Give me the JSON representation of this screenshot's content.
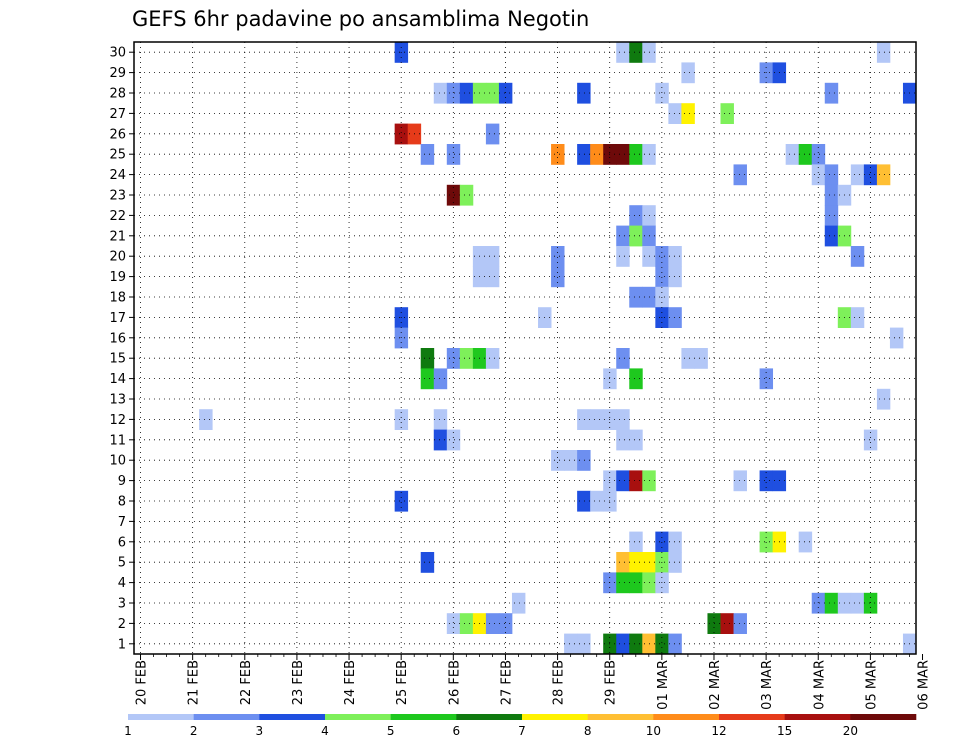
{
  "chart_data": {
    "type": "heatmap",
    "title": "GEFS 6hr padavine po ansamblima Negotin",
    "xlabel": "",
    "ylabel": "",
    "x_tick_labels": [
      "20 FEB",
      "21 FEB",
      "22 FEB",
      "23 FEB",
      "24 FEB",
      "25 FEB",
      "26 FEB",
      "27 FEB",
      "28 FEB",
      "29 FEB",
      "01 MAR",
      "02 MAR",
      "03 MAR",
      "04 MAR",
      "05 MAR",
      "06 MAR"
    ],
    "y_tick_labels": [
      "1",
      "2",
      "3",
      "4",
      "5",
      "6",
      "7",
      "8",
      "9",
      "10",
      "11",
      "12",
      "13",
      "14",
      "15",
      "16",
      "17",
      "18",
      "19",
      "20",
      "21",
      "22",
      "23",
      "24",
      "25",
      "26",
      "27",
      "28",
      "29",
      "30"
    ],
    "x_range_steps": [
      0,
      60
    ],
    "y_range_members": [
      0,
      30
    ],
    "x_step_hours": 6,
    "colorbar": {
      "ticks": [
        "1",
        "2",
        "3",
        "4",
        "5",
        "6",
        "7",
        "8",
        "10",
        "12",
        "15",
        "20"
      ],
      "colors": [
        "#b3c7f7",
        "#6d8ff0",
        "#1f4fe0",
        "#7ef05a",
        "#1ec81e",
        "#0f7a0f",
        "#fff200",
        "#ffbf33",
        "#ff8c1a",
        "#e63b1a",
        "#a8100f",
        "#6e0a0a"
      ]
    },
    "cells": [
      {
        "step": 20,
        "member": 30,
        "class": 3
      },
      {
        "step": 37,
        "member": 30,
        "class": 1
      },
      {
        "step": 38,
        "member": 30,
        "class": 6
      },
      {
        "step": 39,
        "member": 30,
        "class": 1
      },
      {
        "step": 57,
        "member": 30,
        "class": 1
      },
      {
        "step": 42,
        "member": 29,
        "class": 1
      },
      {
        "step": 48,
        "member": 29,
        "class": 2
      },
      {
        "step": 49,
        "member": 29,
        "class": 3
      },
      {
        "step": 23,
        "member": 28,
        "class": 1
      },
      {
        "step": 24,
        "member": 28,
        "class": 2
      },
      {
        "step": 25,
        "member": 28,
        "class": 3
      },
      {
        "step": 26,
        "member": 28,
        "class": 4
      },
      {
        "step": 27,
        "member": 28,
        "class": 4
      },
      {
        "step": 28,
        "member": 28,
        "class": 3
      },
      {
        "step": 34,
        "member": 28,
        "class": 3
      },
      {
        "step": 40,
        "member": 28,
        "class": 1
      },
      {
        "step": 53,
        "member": 28,
        "class": 2
      },
      {
        "step": 59,
        "member": 28,
        "class": 3
      },
      {
        "step": 60,
        "member": 28,
        "class": 1
      },
      {
        "step": 41,
        "member": 27,
        "class": 1
      },
      {
        "step": 42,
        "member": 27,
        "class": 7
      },
      {
        "step": 45,
        "member": 27,
        "class": 4
      },
      {
        "step": 20,
        "member": 26,
        "class": 11
      },
      {
        "step": 21,
        "member": 26,
        "class": 10
      },
      {
        "step": 27,
        "member": 26,
        "class": 2
      },
      {
        "step": 22,
        "member": 25,
        "class": 2
      },
      {
        "step": 24,
        "member": 25,
        "class": 2
      },
      {
        "step": 32,
        "member": 25,
        "class": 9
      },
      {
        "step": 34,
        "member": 25,
        "class": 3
      },
      {
        "step": 35,
        "member": 25,
        "class": 9
      },
      {
        "step": 36,
        "member": 25,
        "class": 12
      },
      {
        "step": 37,
        "member": 25,
        "class": 12
      },
      {
        "step": 38,
        "member": 25,
        "class": 5
      },
      {
        "step": 39,
        "member": 25,
        "class": 1
      },
      {
        "step": 50,
        "member": 25,
        "class": 1
      },
      {
        "step": 51,
        "member": 25,
        "class": 5
      },
      {
        "step": 52,
        "member": 25,
        "class": 2
      },
      {
        "step": 46,
        "member": 24,
        "class": 2
      },
      {
        "step": 52,
        "member": 24,
        "class": 1
      },
      {
        "step": 53,
        "member": 24,
        "class": 2
      },
      {
        "step": 55,
        "member": 24,
        "class": 1
      },
      {
        "step": 56,
        "member": 24,
        "class": 3
      },
      {
        "step": 57,
        "member": 24,
        "class": 8
      },
      {
        "step": 24,
        "member": 23,
        "class": 12
      },
      {
        "step": 25,
        "member": 23,
        "class": 4
      },
      {
        "step": 53,
        "member": 23,
        "class": 2
      },
      {
        "step": 54,
        "member": 23,
        "class": 1
      },
      {
        "step": 38,
        "member": 22,
        "class": 2
      },
      {
        "step": 39,
        "member": 22,
        "class": 1
      },
      {
        "step": 53,
        "member": 22,
        "class": 2
      },
      {
        "step": 37,
        "member": 21,
        "class": 2
      },
      {
        "step": 38,
        "member": 21,
        "class": 4
      },
      {
        "step": 39,
        "member": 21,
        "class": 2
      },
      {
        "step": 53,
        "member": 21,
        "class": 3
      },
      {
        "step": 54,
        "member": 21,
        "class": 4
      },
      {
        "step": 26,
        "member": 20,
        "class": 1
      },
      {
        "step": 27,
        "member": 20,
        "class": 1
      },
      {
        "step": 32,
        "member": 20,
        "class": 2
      },
      {
        "step": 37,
        "member": 20,
        "class": 1
      },
      {
        "step": 39,
        "member": 20,
        "class": 1
      },
      {
        "step": 40,
        "member": 20,
        "class": 2
      },
      {
        "step": 41,
        "member": 20,
        "class": 1
      },
      {
        "step": 55,
        "member": 20,
        "class": 2
      },
      {
        "step": 26,
        "member": 19,
        "class": 1
      },
      {
        "step": 27,
        "member": 19,
        "class": 1
      },
      {
        "step": 32,
        "member": 19,
        "class": 2
      },
      {
        "step": 40,
        "member": 19,
        "class": 2
      },
      {
        "step": 41,
        "member": 19,
        "class": 1
      },
      {
        "step": 38,
        "member": 18,
        "class": 2
      },
      {
        "step": 39,
        "member": 18,
        "class": 2
      },
      {
        "step": 40,
        "member": 18,
        "class": 1
      },
      {
        "step": 20,
        "member": 17,
        "class": 3
      },
      {
        "step": 31,
        "member": 17,
        "class": 1
      },
      {
        "step": 40,
        "member": 17,
        "class": 3
      },
      {
        "step": 41,
        "member": 17,
        "class": 2
      },
      {
        "step": 54,
        "member": 17,
        "class": 4
      },
      {
        "step": 55,
        "member": 17,
        "class": 1
      },
      {
        "step": 20,
        "member": 16,
        "class": 2
      },
      {
        "step": 58,
        "member": 16,
        "class": 1
      },
      {
        "step": 22,
        "member": 15,
        "class": 6
      },
      {
        "step": 24,
        "member": 15,
        "class": 2
      },
      {
        "step": 25,
        "member": 15,
        "class": 4
      },
      {
        "step": 26,
        "member": 15,
        "class": 5
      },
      {
        "step": 27,
        "member": 15,
        "class": 1
      },
      {
        "step": 37,
        "member": 15,
        "class": 2
      },
      {
        "step": 42,
        "member": 15,
        "class": 1
      },
      {
        "step": 43,
        "member": 15,
        "class": 1
      },
      {
        "step": 60,
        "member": 15,
        "class": 1
      },
      {
        "step": 22,
        "member": 14,
        "class": 5
      },
      {
        "step": 23,
        "member": 14,
        "class": 2
      },
      {
        "step": 36,
        "member": 14,
        "class": 1
      },
      {
        "step": 38,
        "member": 14,
        "class": 5
      },
      {
        "step": 48,
        "member": 14,
        "class": 2
      },
      {
        "step": 57,
        "member": 13,
        "class": 1
      },
      {
        "step": 5,
        "member": 12,
        "class": 1
      },
      {
        "step": 20,
        "member": 12,
        "class": 1
      },
      {
        "step": 23,
        "member": 12,
        "class": 1
      },
      {
        "step": 34,
        "member": 12,
        "class": 1
      },
      {
        "step": 35,
        "member": 12,
        "class": 1
      },
      {
        "step": 36,
        "member": 12,
        "class": 1
      },
      {
        "step": 37,
        "member": 12,
        "class": 1
      },
      {
        "step": 23,
        "member": 11,
        "class": 3
      },
      {
        "step": 24,
        "member": 11,
        "class": 1
      },
      {
        "step": 37,
        "member": 11,
        "class": 1
      },
      {
        "step": 38,
        "member": 11,
        "class": 1
      },
      {
        "step": 56,
        "member": 11,
        "class": 1
      },
      {
        "step": 32,
        "member": 10,
        "class": 1
      },
      {
        "step": 33,
        "member": 10,
        "class": 1
      },
      {
        "step": 34,
        "member": 10,
        "class": 2
      },
      {
        "step": 36,
        "member": 9,
        "class": 1
      },
      {
        "step": 37,
        "member": 9,
        "class": 3
      },
      {
        "step": 38,
        "member": 9,
        "class": 11
      },
      {
        "step": 39,
        "member": 9,
        "class": 4
      },
      {
        "step": 46,
        "member": 9,
        "class": 1
      },
      {
        "step": 48,
        "member": 9,
        "class": 3
      },
      {
        "step": 49,
        "member": 9,
        "class": 3
      },
      {
        "step": 20,
        "member": 8,
        "class": 3
      },
      {
        "step": 34,
        "member": 8,
        "class": 3
      },
      {
        "step": 35,
        "member": 8,
        "class": 1
      },
      {
        "step": 36,
        "member": 8,
        "class": 1
      },
      {
        "step": 38,
        "member": 6,
        "class": 1
      },
      {
        "step": 40,
        "member": 6,
        "class": 3
      },
      {
        "step": 41,
        "member": 6,
        "class": 1
      },
      {
        "step": 48,
        "member": 6,
        "class": 4
      },
      {
        "step": 49,
        "member": 6,
        "class": 7
      },
      {
        "step": 51,
        "member": 6,
        "class": 1
      },
      {
        "step": 60,
        "member": 6,
        "class": 1
      },
      {
        "step": 22,
        "member": 5,
        "class": 3
      },
      {
        "step": 37,
        "member": 5,
        "class": 8
      },
      {
        "step": 38,
        "member": 5,
        "class": 7
      },
      {
        "step": 39,
        "member": 5,
        "class": 7
      },
      {
        "step": 40,
        "member": 5,
        "class": 4
      },
      {
        "step": 41,
        "member": 5,
        "class": 1
      },
      {
        "step": 36,
        "member": 4,
        "class": 2
      },
      {
        "step": 37,
        "member": 4,
        "class": 5
      },
      {
        "step": 38,
        "member": 4,
        "class": 5
      },
      {
        "step": 39,
        "member": 4,
        "class": 4
      },
      {
        "step": 40,
        "member": 4,
        "class": 1
      },
      {
        "step": 29,
        "member": 3,
        "class": 1
      },
      {
        "step": 52,
        "member": 3,
        "class": 2
      },
      {
        "step": 53,
        "member": 3,
        "class": 5
      },
      {
        "step": 54,
        "member": 3,
        "class": 1
      },
      {
        "step": 55,
        "member": 3,
        "class": 1
      },
      {
        "step": 56,
        "member": 3,
        "class": 5
      },
      {
        "step": 24,
        "member": 2,
        "class": 1
      },
      {
        "step": 25,
        "member": 2,
        "class": 4
      },
      {
        "step": 26,
        "member": 2,
        "class": 7
      },
      {
        "step": 27,
        "member": 2,
        "class": 2
      },
      {
        "step": 28,
        "member": 2,
        "class": 2
      },
      {
        "step": 44,
        "member": 2,
        "class": 6
      },
      {
        "step": 45,
        "member": 2,
        "class": 11
      },
      {
        "step": 46,
        "member": 2,
        "class": 2
      },
      {
        "step": 33,
        "member": 1,
        "class": 1
      },
      {
        "step": 34,
        "member": 1,
        "class": 1
      },
      {
        "step": 36,
        "member": 1,
        "class": 6
      },
      {
        "step": 37,
        "member": 1,
        "class": 3
      },
      {
        "step": 38,
        "member": 1,
        "class": 6
      },
      {
        "step": 39,
        "member": 1,
        "class": 8
      },
      {
        "step": 40,
        "member": 1,
        "class": 6
      },
      {
        "step": 41,
        "member": 1,
        "class": 2
      },
      {
        "step": 59,
        "member": 1,
        "class": 1
      }
    ]
  }
}
